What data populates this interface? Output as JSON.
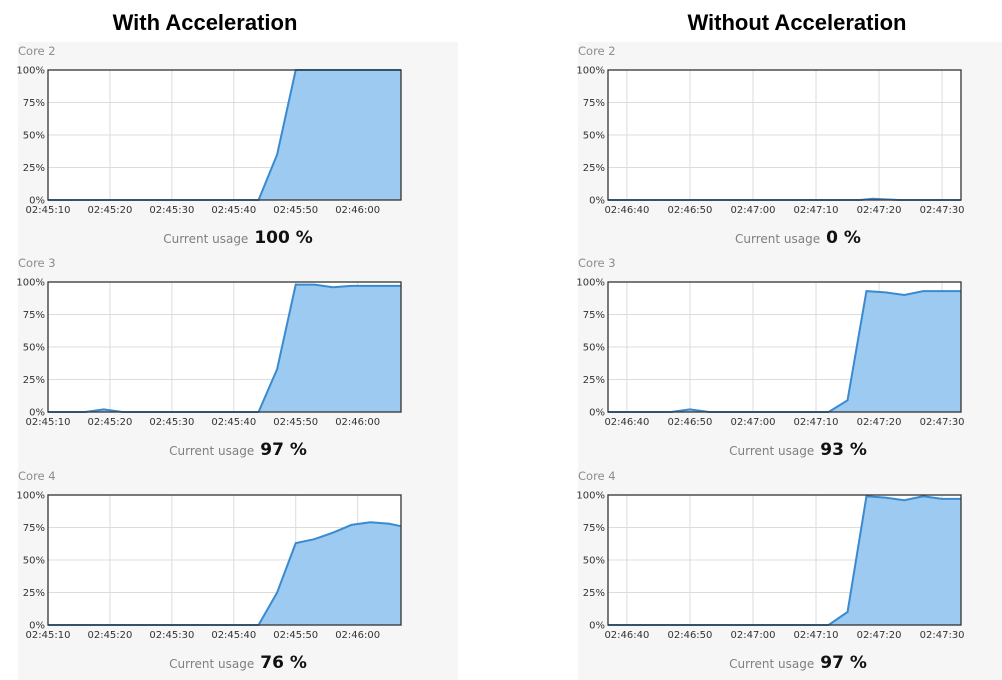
{
  "titles": {
    "left": "With Acceleration",
    "right": "Without Acceleration"
  },
  "usage_label": "Current usage",
  "colors": {
    "fill": "#9ccaf0",
    "line": "#3a8ad0",
    "grid": "#dcdcdc",
    "axis": "#333333"
  },
  "chart_data": [
    {
      "type": "area",
      "panel": "with",
      "title": "Core 2",
      "x_ticks": [
        "02:45:10",
        "02:45:20",
        "02:45:30",
        "02:45:40",
        "02:45:50",
        "02:46:00"
      ],
      "xlim": [
        "02:45:10",
        "02:46:07"
      ],
      "ylim": [
        0,
        100
      ],
      "y_unit": "%",
      "y_ticks": [
        "0%",
        "25%",
        "50%",
        "75%",
        "100%"
      ],
      "x": [
        "02:45:10",
        "02:45:20",
        "02:45:30",
        "02:45:40",
        "02:45:44",
        "02:45:47",
        "02:45:50",
        "02:45:53",
        "02:45:58",
        "02:46:03",
        "02:46:07"
      ],
      "y": [
        0,
        0,
        0,
        0,
        0,
        35,
        100,
        100,
        100,
        100,
        100
      ],
      "current_usage": "100 %"
    },
    {
      "type": "area",
      "panel": "with",
      "title": "Core 3",
      "x_ticks": [
        "02:45:10",
        "02:45:20",
        "02:45:30",
        "02:45:40",
        "02:45:50",
        "02:46:00"
      ],
      "xlim": [
        "02:45:10",
        "02:46:07"
      ],
      "ylim": [
        0,
        100
      ],
      "y_unit": "%",
      "y_ticks": [
        "0%",
        "25%",
        "50%",
        "75%",
        "100%"
      ],
      "x": [
        "02:45:10",
        "02:45:16",
        "02:45:19",
        "02:45:22",
        "02:45:30",
        "02:45:40",
        "02:45:44",
        "02:45:47",
        "02:45:50",
        "02:45:53",
        "02:45:56",
        "02:45:59",
        "02:46:03",
        "02:46:07"
      ],
      "y": [
        0,
        0,
        2,
        0,
        0,
        0,
        0,
        33,
        98,
        98,
        96,
        97,
        97,
        97
      ],
      "current_usage": "97 %"
    },
    {
      "type": "area",
      "panel": "with",
      "title": "Core 4",
      "x_ticks": [
        "02:45:10",
        "02:45:20",
        "02:45:30",
        "02:45:40",
        "02:45:50",
        "02:46:00"
      ],
      "xlim": [
        "02:45:10",
        "02:46:07"
      ],
      "ylim": [
        0,
        100
      ],
      "y_unit": "%",
      "y_ticks": [
        "0%",
        "25%",
        "50%",
        "75%",
        "100%"
      ],
      "x": [
        "02:45:10",
        "02:45:20",
        "02:45:30",
        "02:45:40",
        "02:45:44",
        "02:45:47",
        "02:45:50",
        "02:45:53",
        "02:45:56",
        "02:45:59",
        "02:46:02",
        "02:46:05",
        "02:46:07"
      ],
      "y": [
        0,
        0,
        0,
        0,
        0,
        25,
        63,
        66,
        71,
        77,
        79,
        78,
        76
      ],
      "current_usage": "76 %"
    },
    {
      "type": "area",
      "panel": "without",
      "title": "Core 2",
      "x_ticks": [
        "02:46:40",
        "02:46:50",
        "02:47:00",
        "02:47:10",
        "02:47:20",
        "02:47:30"
      ],
      "xlim": [
        "02:46:37",
        "02:47:33"
      ],
      "ylim": [
        0,
        100
      ],
      "y_unit": "%",
      "y_ticks": [
        "0%",
        "25%",
        "50%",
        "75%",
        "100%"
      ],
      "x": [
        "02:46:37",
        "02:46:50",
        "02:47:00",
        "02:47:10",
        "02:47:17",
        "02:47:19",
        "02:47:23",
        "02:47:33"
      ],
      "y": [
        0,
        0,
        0,
        0,
        0,
        1,
        0,
        0
      ],
      "current_usage": "0 %"
    },
    {
      "type": "area",
      "panel": "without",
      "title": "Core 3",
      "x_ticks": [
        "02:46:40",
        "02:46:50",
        "02:47:00",
        "02:47:10",
        "02:47:20",
        "02:47:30"
      ],
      "xlim": [
        "02:46:37",
        "02:47:33"
      ],
      "ylim": [
        0,
        100
      ],
      "y_unit": "%",
      "y_ticks": [
        "0%",
        "25%",
        "50%",
        "75%",
        "100%"
      ],
      "x": [
        "02:46:37",
        "02:46:47",
        "02:46:50",
        "02:46:53",
        "02:47:00",
        "02:47:10",
        "02:47:12",
        "02:47:15",
        "02:47:18",
        "02:47:21",
        "02:47:24",
        "02:47:27",
        "02:47:30",
        "02:47:33"
      ],
      "y": [
        0,
        0,
        2,
        0,
        0,
        0,
        0,
        9,
        93,
        92,
        90,
        93,
        93,
        93
      ],
      "current_usage": "93 %"
    },
    {
      "type": "area",
      "panel": "without",
      "title": "Core 4",
      "x_ticks": [
        "02:46:40",
        "02:46:50",
        "02:47:00",
        "02:47:10",
        "02:47:20",
        "02:47:30"
      ],
      "xlim": [
        "02:46:37",
        "02:47:33"
      ],
      "ylim": [
        0,
        100
      ],
      "y_unit": "%",
      "y_ticks": [
        "0%",
        "25%",
        "50%",
        "75%",
        "100%"
      ],
      "x": [
        "02:46:37",
        "02:46:50",
        "02:47:00",
        "02:47:10",
        "02:47:12",
        "02:47:15",
        "02:47:18",
        "02:47:21",
        "02:47:24",
        "02:47:27",
        "02:47:30",
        "02:47:33"
      ],
      "y": [
        0,
        0,
        0,
        0,
        0,
        10,
        99,
        98,
        96,
        99,
        97,
        97
      ],
      "current_usage": "97 %"
    }
  ]
}
